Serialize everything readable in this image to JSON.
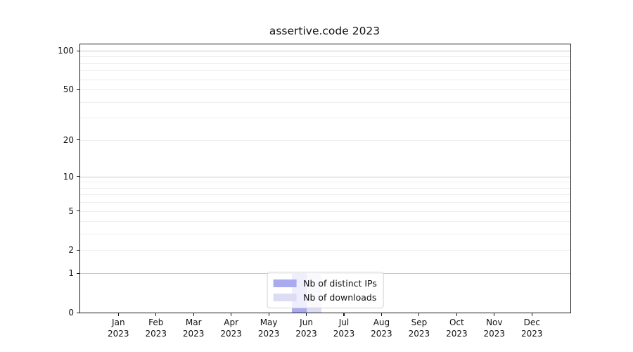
{
  "chart_data": {
    "type": "bar",
    "title": "assertive.code 2023",
    "categories": [
      {
        "month": "Jan",
        "year": "2023"
      },
      {
        "month": "Feb",
        "year": "2023"
      },
      {
        "month": "Mar",
        "year": "2023"
      },
      {
        "month": "Apr",
        "year": "2023"
      },
      {
        "month": "May",
        "year": "2023"
      },
      {
        "month": "Jun",
        "year": "2023"
      },
      {
        "month": "Jul",
        "year": "2023"
      },
      {
        "month": "Aug",
        "year": "2023"
      },
      {
        "month": "Sep",
        "year": "2023"
      },
      {
        "month": "Oct",
        "year": "2023"
      },
      {
        "month": "Nov",
        "year": "2023"
      },
      {
        "month": "Dec",
        "year": "2023"
      }
    ],
    "series": [
      {
        "name": "Nb of distinct IPs",
        "color": "#aaaaee",
        "values": [
          0,
          0,
          0,
          0,
          0,
          1,
          0,
          0,
          0,
          0,
          0,
          0
        ]
      },
      {
        "name": "Nb of downloads",
        "color": "#dcdcf5",
        "values": [
          0,
          0,
          0,
          0,
          0,
          1,
          0,
          0,
          0,
          0,
          0,
          0
        ]
      }
    ],
    "xlabel": "",
    "ylabel": "",
    "y_scale": "log1p",
    "ylim": [
      0,
      112
    ],
    "y_tick_values": [
      100,
      50,
      20,
      10,
      5,
      2,
      1,
      0
    ],
    "y_tick_labels": [
      "100",
      "50",
      "20",
      "10",
      "5",
      "2",
      "1",
      "0"
    ],
    "y_major_gridlines": [
      1,
      10,
      100
    ],
    "y_minor_gridlines": [
      2,
      3,
      4,
      5,
      6,
      7,
      8,
      9,
      20,
      30,
      40,
      50,
      60,
      70,
      80,
      90
    ],
    "grid": true,
    "legend_position": "lower center",
    "colors": {
      "background": "#ffffff",
      "axis": "#1a1a1a",
      "major_grid": "#c9c9c9",
      "minor_grid": "#ededed",
      "text": "#111111"
    }
  }
}
